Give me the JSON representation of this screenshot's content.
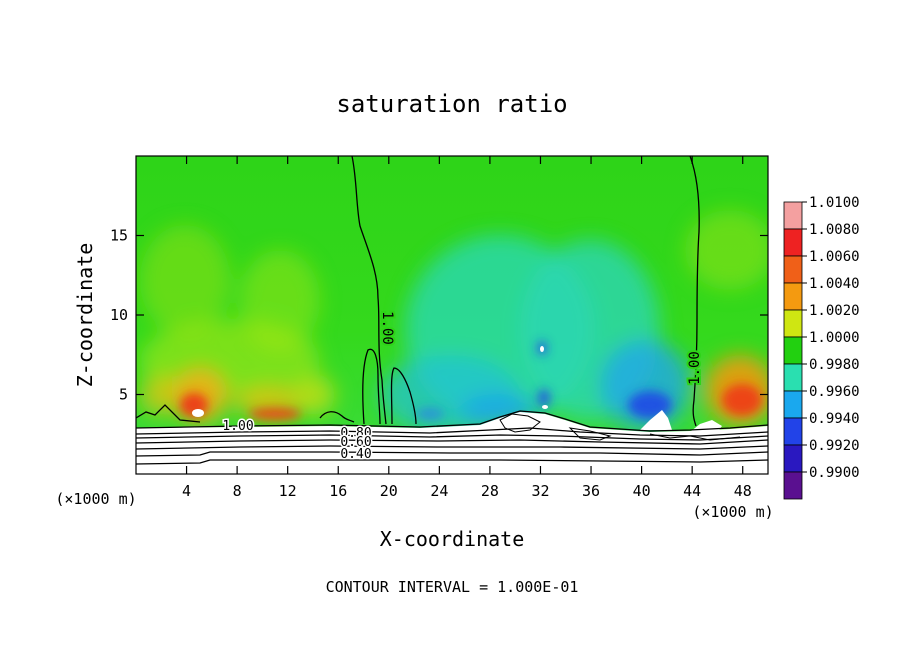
{
  "chart_data": {
    "type": "heatmap",
    "title": "saturation ratio",
    "xlabel": "X-coordinate",
    "ylabel": "Z-coordinate",
    "x_unit": "(×1000 m)",
    "x_unit_right": "(×1000 m)",
    "xlim": [
      0,
      50
    ],
    "ylim": [
      0,
      20
    ],
    "x_ticks": [
      4,
      8,
      12,
      16,
      20,
      24,
      28,
      32,
      36,
      40,
      44,
      48
    ],
    "x_tick_labels": [
      "4",
      "8",
      "12",
      "16",
      "20",
      "24",
      "28",
      "32",
      "36",
      "40",
      "44",
      "48"
    ],
    "y_ticks": [
      5,
      10,
      15
    ],
    "y_tick_labels": [
      "5",
      "10",
      "15"
    ],
    "colorbar": {
      "levels": [
        "1.0100",
        "1.0080",
        "1.0060",
        "1.0040",
        "1.0020",
        "1.0000",
        "0.9980",
        "0.9960",
        "0.9940",
        "0.9920",
        "0.9900"
      ],
      "colors": [
        "#f4a0a0",
        "#ee2222",
        "#f06018",
        "#f49a10",
        "#cfe612",
        "#22d010",
        "#2adfb0",
        "#1aa8ee",
        "#2243e8",
        "#2a18c0",
        "#5a1090"
      ]
    },
    "contour_labels": [
      "1.00",
      "1.00",
      "1.00",
      "0.80",
      "0.60",
      "0.40"
    ],
    "footer": "CONTOUR INTERVAL = 1.000E-01"
  }
}
